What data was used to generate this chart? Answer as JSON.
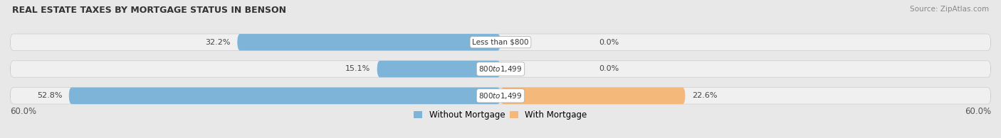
{
  "title": "REAL ESTATE TAXES BY MORTGAGE STATUS IN BENSON",
  "source": "Source: ZipAtlas.com",
  "rows": [
    {
      "label": "Less than $800",
      "without_mortgage": 32.2,
      "with_mortgage": 0.0
    },
    {
      "label": "$800 to $1,499",
      "without_mortgage": 15.1,
      "with_mortgage": 0.0
    },
    {
      "label": "$800 to $1,499",
      "without_mortgage": 52.8,
      "with_mortgage": 22.6
    }
  ],
  "x_max": 60.0,
  "color_without": "#7EB4D8",
  "color_with": "#F4B97A",
  "color_label_bg": "#ffffff",
  "bar_height": 0.62,
  "legend_without": "Without Mortgage",
  "legend_with": "With Mortgage",
  "x_left_label": "60.0%",
  "x_right_label": "60.0%",
  "background_color": "#e8e8e8",
  "bar_background": "#dcdcdc",
  "bar_row_bg": "#f0f0f0"
}
